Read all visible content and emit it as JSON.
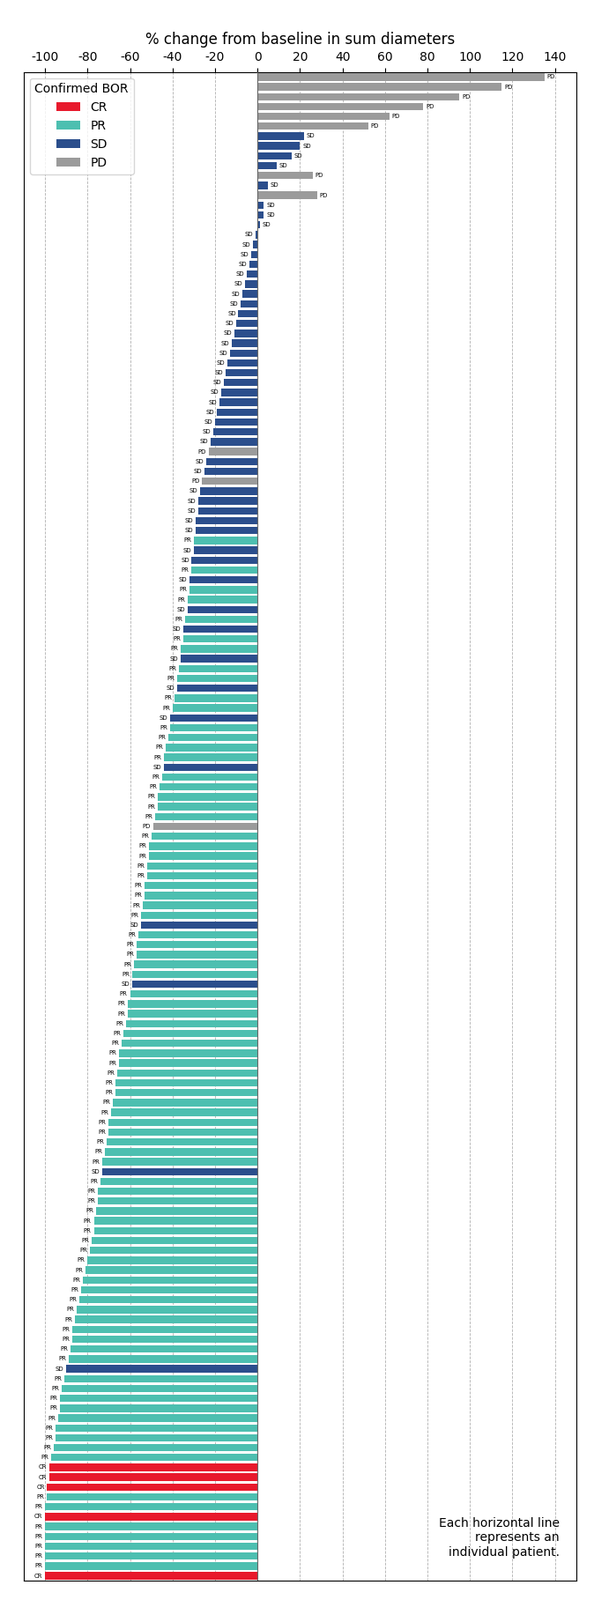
{
  "chart_data": {
    "type": "bar",
    "orientation": "horizontal",
    "title": "% change from baseline in sum diameters",
    "annotations": [
      "Each horizontal line\nrepresents an\nindividual patient."
    ],
    "legend": "upper left",
    "legend_title": "Confirmed BOR",
    "grid": true,
    "tick_labels": "x",
    "xlim": [
      -110,
      150
    ],
    "xticks": [
      -100,
      -80,
      -60,
      -40,
      -20,
      0,
      20,
      40,
      60,
      80,
      100,
      120,
      140
    ],
    "categories": [
      null,
      null,
      null,
      null,
      null,
      null,
      null,
      null,
      null,
      null,
      null,
      null,
      null,
      null,
      null,
      null,
      null,
      null,
      null,
      null,
      null,
      null,
      null,
      null,
      null,
      null,
      null,
      null,
      null,
      null,
      null,
      null,
      null,
      null,
      null,
      null,
      null,
      null,
      null,
      null,
      null,
      null,
      null,
      null,
      null,
      null,
      null,
      null,
      null,
      null,
      null,
      null,
      null,
      null,
      null,
      null,
      null,
      null,
      null,
      null,
      null,
      null,
      null,
      null,
      null,
      null,
      null,
      null,
      null,
      null,
      null,
      null,
      null,
      null,
      null,
      null,
      null,
      null,
      null,
      null,
      null,
      null,
      null,
      null,
      null,
      null,
      null,
      null,
      null,
      null,
      null,
      null,
      null,
      null,
      null,
      null,
      null,
      null,
      null,
      null,
      null,
      null,
      null,
      null,
      null,
      null,
      null,
      null,
      null,
      null,
      null,
      null,
      null,
      null,
      null,
      null,
      null,
      null,
      null,
      null,
      null,
      null,
      null,
      null,
      null,
      null,
      null,
      null,
      null,
      null,
      null,
      null,
      null,
      null,
      null,
      null,
      null,
      null,
      null,
      null,
      null,
      null,
      null,
      null,
      null,
      null,
      null,
      null,
      null,
      null,
      null,
      null,
      null
    ],
    "series": [
      {
        "name": "CR",
        "color": "#E8192C",
        "values": [
          null,
          null,
          null,
          null,
          null,
          null,
          null,
          null,
          null,
          null,
          null,
          null,
          null,
          null,
          null,
          null,
          null,
          null,
          null,
          null,
          null,
          null,
          null,
          null,
          null,
          null,
          null,
          null,
          null,
          null,
          null,
          null,
          null,
          null,
          null,
          null,
          null,
          null,
          null,
          null,
          null,
          null,
          null,
          null,
          null,
          null,
          null,
          null,
          null,
          null,
          null,
          null,
          null,
          null,
          null,
          null,
          null,
          null,
          null,
          null,
          null,
          null,
          null,
          null,
          null,
          null,
          null,
          null,
          null,
          null,
          null,
          null,
          null,
          null,
          null,
          null,
          null,
          null,
          null,
          null,
          null,
          null,
          null,
          null,
          null,
          null,
          null,
          null,
          null,
          null,
          null,
          null,
          null,
          null,
          null,
          null,
          null,
          null,
          null,
          null,
          null,
          null,
          null,
          null,
          null,
          null,
          null,
          null,
          null,
          null,
          null,
          null,
          null,
          null,
          null,
          null,
          null,
          null,
          null,
          null,
          null,
          null,
          null,
          null,
          null,
          null,
          null,
          null,
          null,
          null,
          null,
          null,
          null,
          null,
          null,
          null,
          null,
          null,
          null,
          null,
          null,
          -98,
          -98,
          -99,
          null,
          null,
          -100,
          null,
          null,
          null,
          null,
          null,
          -100
        ]
      },
      {
        "name": "PR",
        "color": "#4DBFB0",
        "values": [
          null,
          null,
          null,
          null,
          null,
          null,
          null,
          null,
          null,
          null,
          null,
          null,
          null,
          null,
          null,
          null,
          null,
          null,
          null,
          null,
          null,
          null,
          null,
          null,
          null,
          null,
          null,
          null,
          null,
          null,
          null,
          null,
          null,
          null,
          null,
          null,
          null,
          null,
          null,
          null,
          null,
          null,
          null,
          null,
          null,
          null,
          null,
          -30,
          null,
          null,
          -31,
          null,
          -32,
          -33,
          null,
          -34,
          null,
          -35,
          -36,
          null,
          -37,
          -38,
          null,
          -39,
          -40,
          null,
          -41,
          -42,
          -43,
          -44,
          null,
          -45,
          -46,
          -47,
          -47,
          -48,
          null,
          -50,
          -51,
          -51,
          -52,
          -52,
          -53,
          -53,
          -54,
          -55,
          null,
          -56,
          -57,
          -57,
          -58,
          -59,
          null,
          -60,
          -61,
          -61,
          -62,
          -63,
          -64,
          -65,
          -65,
          -66,
          -67,
          -67,
          -68,
          -69,
          -70,
          -70,
          -71,
          -72,
          -73,
          null,
          -74,
          -75,
          -75,
          -76,
          -77,
          -77,
          -78,
          -79,
          -80,
          -81,
          -82,
          -83,
          -84,
          -85,
          -86,
          -87,
          -87,
          -88,
          -89,
          null,
          -91,
          -92,
          -93,
          -93,
          -94,
          -95,
          -95,
          -96,
          -97,
          null,
          null,
          null,
          -99,
          -100,
          null,
          -100,
          -100,
          -100,
          -100,
          -100,
          null
        ]
      },
      {
        "name": "SD",
        "color": "#2B4E8C",
        "values": [
          null,
          null,
          null,
          null,
          null,
          null,
          22,
          20,
          16,
          9,
          null,
          5,
          null,
          3,
          3,
          1,
          -1,
          -2,
          -3,
          -4,
          -5,
          -6,
          -7,
          -8,
          -9,
          -10,
          -11,
          -12,
          -13,
          -14,
          -15,
          -16,
          -17,
          -18,
          -19,
          -20,
          -21,
          -22,
          null,
          -24,
          -25,
          null,
          -27,
          -28,
          -28,
          -29,
          -29,
          null,
          -30,
          -31,
          null,
          -32,
          null,
          null,
          -33,
          null,
          -35,
          null,
          null,
          -36,
          null,
          null,
          -38,
          null,
          null,
          -41,
          null,
          null,
          null,
          null,
          -44,
          null,
          null,
          null,
          null,
          null,
          null,
          null,
          null,
          null,
          null,
          null,
          null,
          null,
          null,
          null,
          -55,
          null,
          null,
          null,
          null,
          null,
          -59,
          null,
          null,
          null,
          null,
          null,
          null,
          null,
          null,
          null,
          null,
          null,
          null,
          null,
          null,
          null,
          null,
          null,
          null,
          -73,
          null,
          null,
          null,
          null,
          null,
          null,
          null,
          null,
          null,
          null,
          null,
          null,
          null,
          null,
          null,
          null,
          null,
          null,
          null,
          -90,
          null,
          null,
          null,
          null,
          null,
          null,
          null,
          null,
          null,
          null,
          null,
          null,
          null,
          null,
          null,
          null,
          null,
          null,
          null,
          null,
          null
        ]
      },
      {
        "name": "PD",
        "color": "#9B9B9B",
        "values": [
          135,
          115,
          95,
          78,
          62,
          52,
          null,
          null,
          null,
          null,
          26,
          null,
          28,
          null,
          null,
          null,
          null,
          null,
          null,
          null,
          null,
          null,
          null,
          null,
          null,
          null,
          null,
          null,
          null,
          null,
          null,
          null,
          null,
          null,
          null,
          null,
          null,
          null,
          -23,
          null,
          null,
          -26,
          null,
          null,
          null,
          null,
          null,
          null,
          null,
          null,
          null,
          null,
          null,
          null,
          null,
          null,
          null,
          null,
          null,
          null,
          null,
          null,
          null,
          null,
          null,
          null,
          null,
          null,
          null,
          null,
          null,
          null,
          null,
          null,
          null,
          null,
          -49,
          null,
          null,
          null,
          null,
          null,
          null,
          null,
          null,
          null,
          null,
          null,
          null,
          null,
          null,
          null,
          null,
          null,
          null,
          null,
          null,
          null,
          null,
          null,
          null,
          null,
          null,
          null,
          null,
          null,
          null,
          null,
          null,
          null,
          null,
          null,
          null,
          null,
          null,
          null,
          null,
          null,
          null,
          null,
          null,
          null,
          null,
          null,
          null,
          null,
          null,
          null,
          null,
          null,
          null,
          null,
          null,
          null,
          null,
          null,
          null,
          null,
          null,
          null,
          null,
          null,
          null,
          null,
          null,
          null,
          null,
          null,
          null,
          null,
          null,
          null,
          null
        ]
      }
    ]
  }
}
